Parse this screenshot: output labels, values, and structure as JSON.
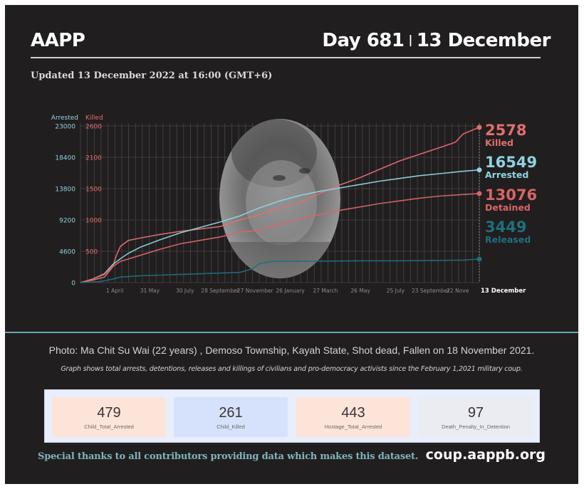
{
  "header": {
    "brand": "AAPP",
    "day_label": "Day 681",
    "separator": "|",
    "date_label": "13 December",
    "updated": "Updated 13 December 2022 at 16:00 (GMT+6)"
  },
  "photo": {
    "description": "Portrait photo of Ma Chit Su Wai (grayscale, oval)",
    "caption": "Photo: Ma Chit Su Wai  (22 years) , Demoso Township, Kayah State, Shot dead, Fallen on 18 November 2021."
  },
  "note": "Graph shows total arrests, detentions, releases and killings of civilians and pro-democracy activists since the February 1,2021 military coup.",
  "colors": {
    "background": "#211e1f",
    "killed": "#e06f6f",
    "arrested": "#8fd3df",
    "detained": "#d86565",
    "released": "#1f6f7d",
    "divider": "#5fa9b3",
    "grid": "#4a4648"
  },
  "chart_data": {
    "type": "line",
    "title": "",
    "xlabel": "",
    "left_axes": [
      {
        "name": "Arrested",
        "color": "#8fd3df",
        "ticks": [
          0,
          4600,
          9200,
          13800,
          18400,
          23000
        ],
        "range": [
          0,
          23000
        ]
      },
      {
        "name": "Killed",
        "color": "#e06f6f",
        "ticks": [
          500,
          1000,
          1500,
          2100,
          2600
        ],
        "range": [
          0,
          2600
        ]
      }
    ],
    "x_ticks": [
      "1 April",
      "31 May",
      "30 July",
      "28 September",
      "27 November",
      "26 January",
      "27 March",
      "26 May",
      "25 July",
      "23 September",
      "22 Nove",
      "13 December"
    ],
    "x_tick_positions": [
      0.086,
      0.174,
      0.262,
      0.35,
      0.438,
      0.526,
      0.614,
      0.702,
      0.79,
      0.878,
      0.946,
      1.0
    ],
    "grid": true,
    "series": [
      {
        "name": "Killed",
        "axis": "Killed",
        "final_value": 2578,
        "x": [
          0,
          0.03,
          0.06,
          0.08,
          0.09,
          0.1,
          0.12,
          0.15,
          0.2,
          0.25,
          0.3,
          0.35,
          0.4,
          0.45,
          0.5,
          0.55,
          0.6,
          0.65,
          0.7,
          0.75,
          0.8,
          0.85,
          0.9,
          0.94,
          0.96,
          1.0
        ],
        "values": [
          0,
          40,
          90,
          250,
          450,
          600,
          700,
          740,
          800,
          850,
          890,
          930,
          1040,
          1130,
          1230,
          1330,
          1480,
          1620,
          1740,
          1880,
          2020,
          2130,
          2240,
          2330,
          2470,
          2578
        ]
      },
      {
        "name": "Arrested",
        "axis": "Arrested",
        "final_value": 16549,
        "x": [
          0,
          0.03,
          0.06,
          0.08,
          0.1,
          0.12,
          0.15,
          0.2,
          0.25,
          0.3,
          0.35,
          0.4,
          0.45,
          0.5,
          0.55,
          0.6,
          0.65,
          0.7,
          0.75,
          0.8,
          0.85,
          0.9,
          0.95,
          1.0
        ],
        "values": [
          0,
          500,
          1300,
          2600,
          3500,
          4300,
          5200,
          6300,
          7300,
          8100,
          8900,
          9800,
          11000,
          12000,
          12800,
          13400,
          13900,
          14400,
          14900,
          15300,
          15700,
          16000,
          16300,
          16549
        ]
      },
      {
        "name": "Detained",
        "axis": "Arrested",
        "final_value": 13076,
        "x": [
          0,
          0.03,
          0.06,
          0.08,
          0.1,
          0.15,
          0.2,
          0.25,
          0.3,
          0.35,
          0.4,
          0.45,
          0.5,
          0.55,
          0.6,
          0.65,
          0.7,
          0.75,
          0.8,
          0.85,
          0.9,
          0.95,
          1.0
        ],
        "values": [
          0,
          500,
          1200,
          2300,
          3100,
          4000,
          4900,
          5700,
          6200,
          6700,
          7400,
          7700,
          8600,
          9300,
          10000,
          10600,
          11100,
          11600,
          12000,
          12400,
          12700,
          12900,
          13076
        ]
      },
      {
        "name": "Released",
        "axis": "Arrested",
        "final_value": 3449,
        "x": [
          0,
          0.05,
          0.08,
          0.1,
          0.15,
          0.2,
          0.3,
          0.4,
          0.43,
          0.45,
          0.48,
          0.5,
          0.6,
          0.7,
          0.8,
          0.9,
          0.96,
          1.0
        ],
        "values": [
          0,
          150,
          500,
          800,
          1000,
          1100,
          1300,
          1500,
          2000,
          2800,
          3100,
          3150,
          3150,
          3200,
          3200,
          3250,
          3300,
          3449
        ]
      }
    ],
    "end_labels": [
      {
        "value": "2578",
        "label": "Killed",
        "color": "#e06f6f"
      },
      {
        "value": "16549",
        "label": "Arrested",
        "color": "#8fd3df"
      },
      {
        "value": "13076",
        "label": "Detained",
        "color": "#d86565"
      },
      {
        "value": "3449",
        "label": "Released",
        "color": "#1f6f7d"
      }
    ]
  },
  "stats": [
    {
      "value": "479",
      "label": "Child_Total_Arrested",
      "bg": "#fde4d9"
    },
    {
      "value": "261",
      "label": "Child_Killed",
      "bg": "#d6e2fb"
    },
    {
      "value": "443",
      "label": "Hostage_Total_Arrested",
      "bg": "#fde4d9"
    },
    {
      "value": "97",
      "label": "Death_Penalty_In_Detention",
      "bg": "#ebecf2"
    }
  ],
  "footer": {
    "thanks": "Special thanks to all contributors providing data which makes this dataset.",
    "url": "coup.aappb.org"
  }
}
